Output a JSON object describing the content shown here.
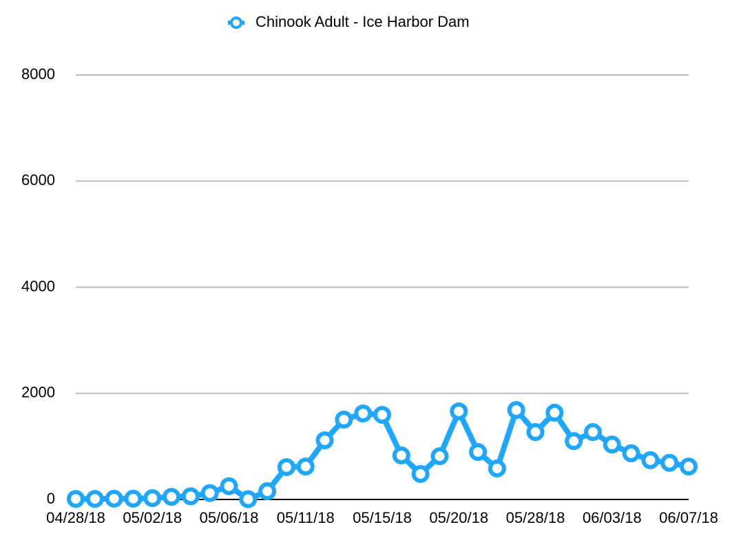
{
  "chart_data": {
    "type": "line",
    "categories": [
      "04/28/18",
      null,
      null,
      null,
      "05/02/18",
      null,
      null,
      null,
      "05/06/18",
      null,
      null,
      null,
      "05/11/18",
      null,
      null,
      null,
      "05/15/18",
      null,
      null,
      null,
      "05/20/18",
      null,
      null,
      null,
      "05/28/18",
      null,
      null,
      null,
      "06/03/18",
      null,
      null,
      null,
      "06/07/18"
    ],
    "series": [
      {
        "name": "Chinook Adult - Ice Harbor Dam",
        "color": "#1ea7fd",
        "values": [
          10,
          10,
          15,
          15,
          25,
          50,
          60,
          120,
          250,
          5,
          155,
          610,
          620,
          1115,
          1505,
          1620,
          1595,
          830,
          480,
          815,
          1660,
          895,
          585,
          1685,
          1270,
          1635,
          1100,
          1270,
          1035,
          870,
          740,
          690,
          620
        ]
      }
    ],
    "ylim": [
      0,
      8000
    ],
    "yticks": [
      0,
      2000,
      4000,
      6000,
      8000
    ],
    "grid": true,
    "legend": "top"
  }
}
